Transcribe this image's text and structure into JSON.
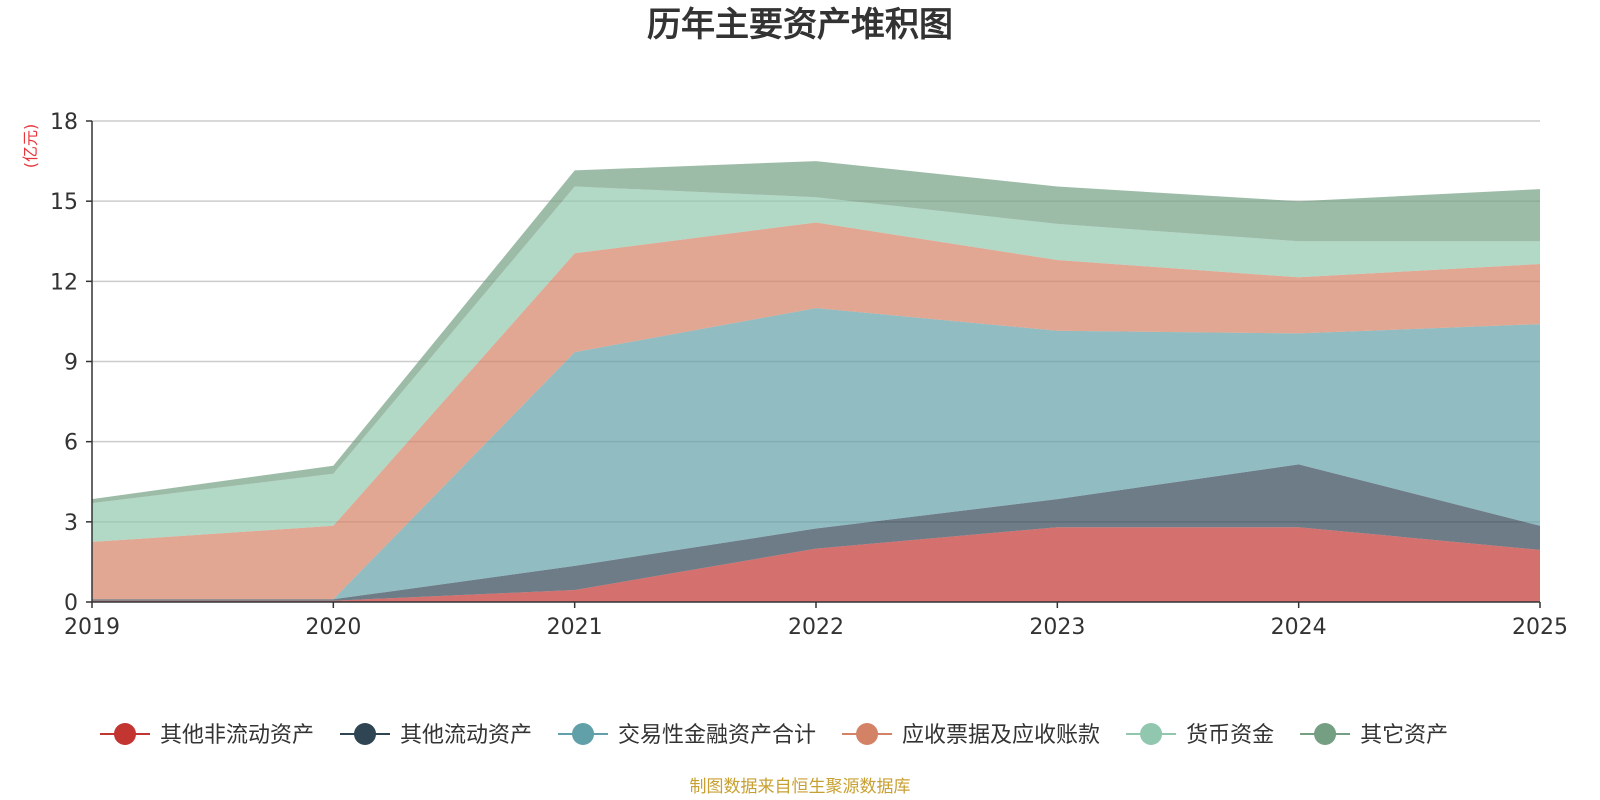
{
  "chart_data": {
    "type": "area",
    "stacked": true,
    "title": "历年主要资产堆积图",
    "unit_label": "(亿元)",
    "unit_color": "#e8343b",
    "source_text": "制图数据来自恒生聚源数据库",
    "source_color": "#c8a032",
    "x": [
      "2019",
      "2020",
      "2021",
      "2022",
      "2023",
      "2024",
      "2025"
    ],
    "ylim": [
      0,
      18
    ],
    "yticks": [
      0,
      3,
      6,
      9,
      12,
      15,
      18
    ],
    "grid": true,
    "legend_position": "bottom",
    "series": [
      {
        "name": "其他非流动资产",
        "color": "#c23531",
        "values": [
          0.05,
          0.05,
          0.45,
          2.0,
          2.8,
          2.8,
          1.95
        ]
      },
      {
        "name": "其他流动资产",
        "color": "#2f4554",
        "values": [
          0.05,
          0.05,
          0.9,
          0.75,
          1.05,
          2.35,
          0.9
        ]
      },
      {
        "name": "交易性金融资产合计",
        "color": "#61a0a8",
        "values": [
          0.0,
          0.0,
          8.0,
          8.25,
          6.3,
          4.9,
          7.55
        ]
      },
      {
        "name": "应收票据及应收账款",
        "color": "#d48265",
        "values": [
          2.15,
          2.75,
          3.7,
          3.2,
          2.65,
          2.1,
          2.25
        ]
      },
      {
        "name": "货币资金",
        "color": "#91c7ae",
        "values": [
          1.45,
          1.95,
          2.5,
          0.95,
          1.35,
          1.35,
          0.85
        ]
      },
      {
        "name": "其它资产",
        "color": "#749f83",
        "values": [
          0.15,
          0.3,
          0.6,
          1.35,
          1.4,
          1.5,
          1.95
        ]
      }
    ]
  }
}
